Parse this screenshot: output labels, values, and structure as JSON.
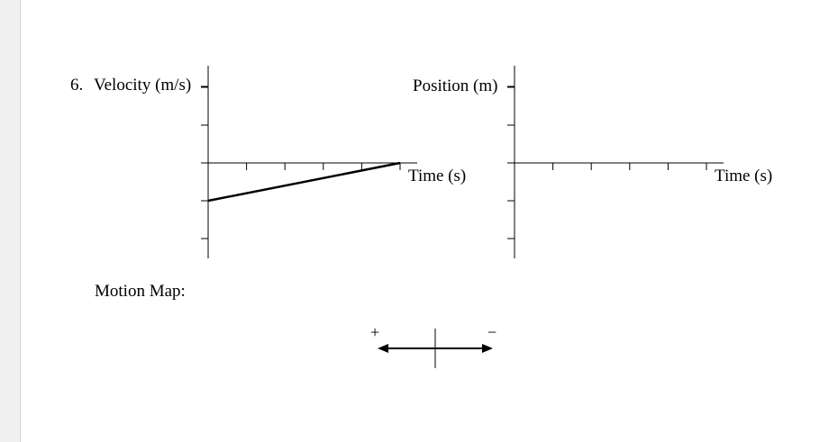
{
  "problem": {
    "number_label": "6.",
    "velocity_graph": {
      "y_label": "Velocity (m/s)",
      "x_label": "Time (s)",
      "chart_data": {
        "type": "line",
        "x": [
          0,
          5
        ],
        "y": [
          -1,
          0
        ],
        "x_ticks": [
          1,
          2,
          3,
          4,
          5
        ],
        "y_ticks": [
          -2,
          -1,
          1,
          2
        ],
        "title": "",
        "xlabel": "Time (s)",
        "ylabel": "Velocity (m/s)"
      }
    },
    "position_graph": {
      "y_label": "Position (m)",
      "x_label": "Time (s)",
      "chart_data": {
        "type": "line",
        "x": [],
        "y": [],
        "x_ticks": [
          1,
          2,
          3,
          4,
          5
        ],
        "y_ticks": [
          -2,
          -1,
          1,
          2
        ],
        "title": "",
        "xlabel": "Time (s)",
        "ylabel": "Position (m)"
      }
    },
    "motion_map": {
      "label": "Motion Map:",
      "plus_sign": "+",
      "minus_sign": "−"
    }
  }
}
